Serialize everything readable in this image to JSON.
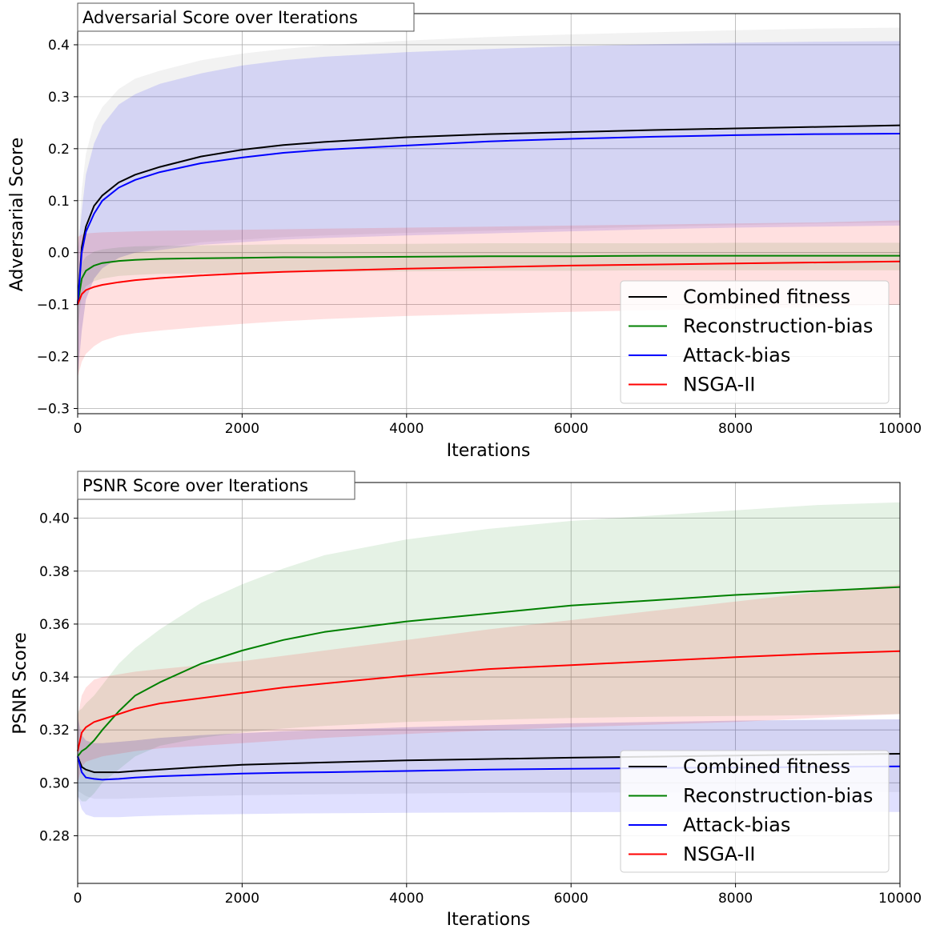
{
  "chart_data": [
    {
      "type": "line",
      "title": "Adversarial Score over Iterations",
      "xlabel": "Iterations",
      "ylabel": "Adversarial Score",
      "xlim": [
        0,
        10000
      ],
      "ylim": [
        -0.31,
        0.46
      ],
      "grid": true,
      "legend_position": "lower-right",
      "x": [
        0,
        50,
        100,
        200,
        300,
        500,
        700,
        1000,
        1500,
        2000,
        2500,
        3000,
        4000,
        5000,
        6000,
        7000,
        8000,
        9000,
        10000
      ],
      "xticks": [
        "0",
        "2000",
        "4000",
        "6000",
        "8000",
        "10000"
      ],
      "yticks": [
        "−0.3",
        "−0.2",
        "−0.1",
        "0.0",
        "0.1",
        "0.2",
        "0.3",
        "0.4"
      ],
      "ytick_values": [
        -0.3,
        -0.2,
        -0.1,
        0.0,
        0.1,
        0.2,
        0.3,
        0.4
      ],
      "series": [
        {
          "name": "Combined fitness",
          "color": "#000000",
          "values": [
            -0.1,
            0.01,
            0.05,
            0.09,
            0.11,
            0.135,
            0.15,
            0.165,
            0.185,
            0.198,
            0.207,
            0.213,
            0.222,
            0.228,
            0.232,
            0.236,
            0.239,
            0.242,
            0.245
          ],
          "band_lower": [
            -0.24,
            -0.15,
            -0.09,
            -0.05,
            -0.03,
            -0.01,
            0.0,
            0.01,
            0.02,
            0.025,
            0.03,
            0.033,
            0.038,
            0.042,
            0.046,
            0.05,
            0.053,
            0.056,
            0.058
          ],
          "band_upper": [
            0.0,
            0.12,
            0.19,
            0.25,
            0.28,
            0.315,
            0.335,
            0.35,
            0.37,
            0.383,
            0.392,
            0.399,
            0.408,
            0.415,
            0.42,
            0.424,
            0.428,
            0.431,
            0.433
          ]
        },
        {
          "name": "Reconstruction-bias",
          "color": "#008000",
          "values": [
            -0.1,
            -0.05,
            -0.035,
            -0.025,
            -0.02,
            -0.016,
            -0.014,
            -0.012,
            -0.011,
            -0.01,
            -0.009,
            -0.009,
            -0.008,
            -0.007,
            -0.007,
            -0.006,
            -0.006,
            -0.006,
            -0.006
          ],
          "band_lower": [
            -0.15,
            -0.08,
            -0.065,
            -0.055,
            -0.05,
            -0.045,
            -0.043,
            -0.041,
            -0.04,
            -0.039,
            -0.038,
            -0.037,
            -0.036,
            -0.035,
            -0.035,
            -0.034,
            -0.034,
            -0.034,
            -0.034
          ],
          "band_upper": [
            -0.06,
            -0.02,
            -0.008,
            0.002,
            0.006,
            0.01,
            0.012,
            0.013,
            0.014,
            0.015,
            0.016,
            0.016,
            0.017,
            0.018,
            0.018,
            0.018,
            0.019,
            0.019,
            0.019
          ]
        },
        {
          "name": "Attack-bias",
          "color": "#0000ff",
          "values": [
            -0.1,
            0.0,
            0.04,
            0.075,
            0.1,
            0.125,
            0.14,
            0.155,
            0.172,
            0.183,
            0.192,
            0.198,
            0.206,
            0.214,
            0.219,
            0.223,
            0.226,
            0.228,
            0.229
          ],
          "band_lower": [
            -0.24,
            -0.15,
            -0.09,
            -0.05,
            -0.03,
            -0.01,
            0.0,
            0.005,
            0.015,
            0.02,
            0.025,
            0.028,
            0.033,
            0.037,
            0.041,
            0.045,
            0.048,
            0.05,
            0.052
          ],
          "band_upper": [
            0.0,
            0.08,
            0.15,
            0.21,
            0.245,
            0.285,
            0.305,
            0.325,
            0.345,
            0.36,
            0.37,
            0.377,
            0.386,
            0.392,
            0.397,
            0.401,
            0.404,
            0.406,
            0.407
          ]
        },
        {
          "name": "NSGA-II",
          "color": "#ff0000",
          "values": [
            -0.1,
            -0.08,
            -0.072,
            -0.066,
            -0.062,
            -0.057,
            -0.053,
            -0.049,
            -0.044,
            -0.04,
            -0.037,
            -0.035,
            -0.031,
            -0.028,
            -0.025,
            -0.023,
            -0.021,
            -0.019,
            -0.017
          ],
          "band_lower": [
            -0.24,
            -0.21,
            -0.195,
            -0.18,
            -0.17,
            -0.16,
            -0.155,
            -0.15,
            -0.143,
            -0.137,
            -0.132,
            -0.128,
            -0.122,
            -0.118,
            -0.114,
            -0.111,
            -0.108,
            -0.105,
            -0.1
          ],
          "band_upper": [
            0.03,
            0.035,
            0.037,
            0.038,
            0.039,
            0.04,
            0.041,
            0.042,
            0.043,
            0.044,
            0.045,
            0.046,
            0.048,
            0.05,
            0.052,
            0.054,
            0.056,
            0.058,
            0.062
          ]
        }
      ]
    },
    {
      "type": "line",
      "title": "PSNR Score over Iterations",
      "xlabel": "Iterations",
      "ylabel": "PSNR Score",
      "xlim": [
        0,
        10000
      ],
      "ylim": [
        0.262,
        0.4135
      ],
      "grid": true,
      "legend_position": "lower-right",
      "x": [
        0,
        50,
        100,
        200,
        300,
        500,
        700,
        1000,
        1500,
        2000,
        2500,
        3000,
        4000,
        5000,
        6000,
        7000,
        8000,
        9000,
        10000
      ],
      "xticks": [
        "0",
        "2000",
        "4000",
        "6000",
        "8000",
        "10000"
      ],
      "yticks": [
        "0.28",
        "0.30",
        "0.32",
        "0.34",
        "0.36",
        "0.38",
        "0.40"
      ],
      "ytick_values": [
        0.28,
        0.3,
        0.32,
        0.34,
        0.36,
        0.38,
        0.4
      ],
      "series": [
        {
          "name": "Combined fitness",
          "color": "#000000",
          "values": [
            0.31,
            0.306,
            0.305,
            0.304,
            0.304,
            0.304,
            0.3045,
            0.305,
            0.306,
            0.3068,
            0.3073,
            0.3077,
            0.3085,
            0.309,
            0.3095,
            0.3099,
            0.3103,
            0.3107,
            0.311
          ],
          "band_lower": [
            0.297,
            0.296,
            0.295,
            0.294,
            0.294,
            0.294,
            0.2942,
            0.2945,
            0.295,
            0.2953,
            0.2955,
            0.2957,
            0.296,
            0.2962,
            0.2963,
            0.2964,
            0.2965,
            0.2965,
            0.2965
          ],
          "band_upper": [
            0.324,
            0.318,
            0.316,
            0.315,
            0.315,
            0.3155,
            0.316,
            0.317,
            0.318,
            0.3188,
            0.3195,
            0.32,
            0.321,
            0.3218,
            0.3225,
            0.323,
            0.3235,
            0.3238,
            0.324
          ]
        },
        {
          "name": "Reconstruction-bias",
          "color": "#008000",
          "values": [
            0.31,
            0.312,
            0.313,
            0.316,
            0.32,
            0.327,
            0.333,
            0.338,
            0.345,
            0.35,
            0.354,
            0.357,
            0.361,
            0.364,
            0.367,
            0.369,
            0.371,
            0.3725,
            0.374
          ],
          "band_lower": [
            0.295,
            0.293,
            0.293,
            0.296,
            0.3,
            0.305,
            0.31,
            0.314,
            0.317,
            0.319,
            0.3205,
            0.3215,
            0.323,
            0.3238,
            0.3245,
            0.325,
            0.3253,
            0.3256,
            0.326
          ],
          "band_upper": [
            0.327,
            0.328,
            0.33,
            0.333,
            0.337,
            0.345,
            0.351,
            0.358,
            0.368,
            0.375,
            0.381,
            0.386,
            0.392,
            0.396,
            0.399,
            0.401,
            0.403,
            0.405,
            0.406
          ]
        },
        {
          "name": "Attack-bias",
          "color": "#0000ff",
          "values": [
            0.31,
            0.304,
            0.302,
            0.3015,
            0.3012,
            0.3015,
            0.302,
            0.3025,
            0.303,
            0.3035,
            0.3038,
            0.304,
            0.3045,
            0.305,
            0.3053,
            0.3056,
            0.3058,
            0.306,
            0.3062
          ],
          "band_lower": [
            0.295,
            0.29,
            0.288,
            0.287,
            0.287,
            0.287,
            0.2873,
            0.2876,
            0.288,
            0.2882,
            0.2884,
            0.2885,
            0.2887,
            0.2888,
            0.2889,
            0.289,
            0.289,
            0.289,
            0.289
          ],
          "band_upper": [
            0.325,
            0.318,
            0.316,
            0.315,
            0.315,
            0.3155,
            0.316,
            0.317,
            0.318,
            0.3188,
            0.3195,
            0.32,
            0.321,
            0.3218,
            0.3225,
            0.323,
            0.3235,
            0.3238,
            0.324
          ]
        },
        {
          "name": "NSGA-II",
          "color": "#ff0000",
          "values": [
            0.312,
            0.319,
            0.321,
            0.323,
            0.324,
            0.326,
            0.328,
            0.33,
            0.332,
            0.334,
            0.336,
            0.3375,
            0.3405,
            0.343,
            0.3445,
            0.346,
            0.3475,
            0.3488,
            0.3498
          ],
          "band_lower": [
            0.3,
            0.306,
            0.308,
            0.309,
            0.31,
            0.311,
            0.312,
            0.313,
            0.314,
            0.315,
            0.316,
            0.317,
            0.3185,
            0.3198,
            0.321,
            0.322,
            0.323,
            0.3245,
            0.326
          ],
          "band_upper": [
            0.325,
            0.333,
            0.336,
            0.339,
            0.34,
            0.341,
            0.342,
            0.343,
            0.3445,
            0.346,
            0.348,
            0.35,
            0.354,
            0.358,
            0.3615,
            0.365,
            0.3685,
            0.372,
            0.375
          ]
        }
      ]
    }
  ]
}
